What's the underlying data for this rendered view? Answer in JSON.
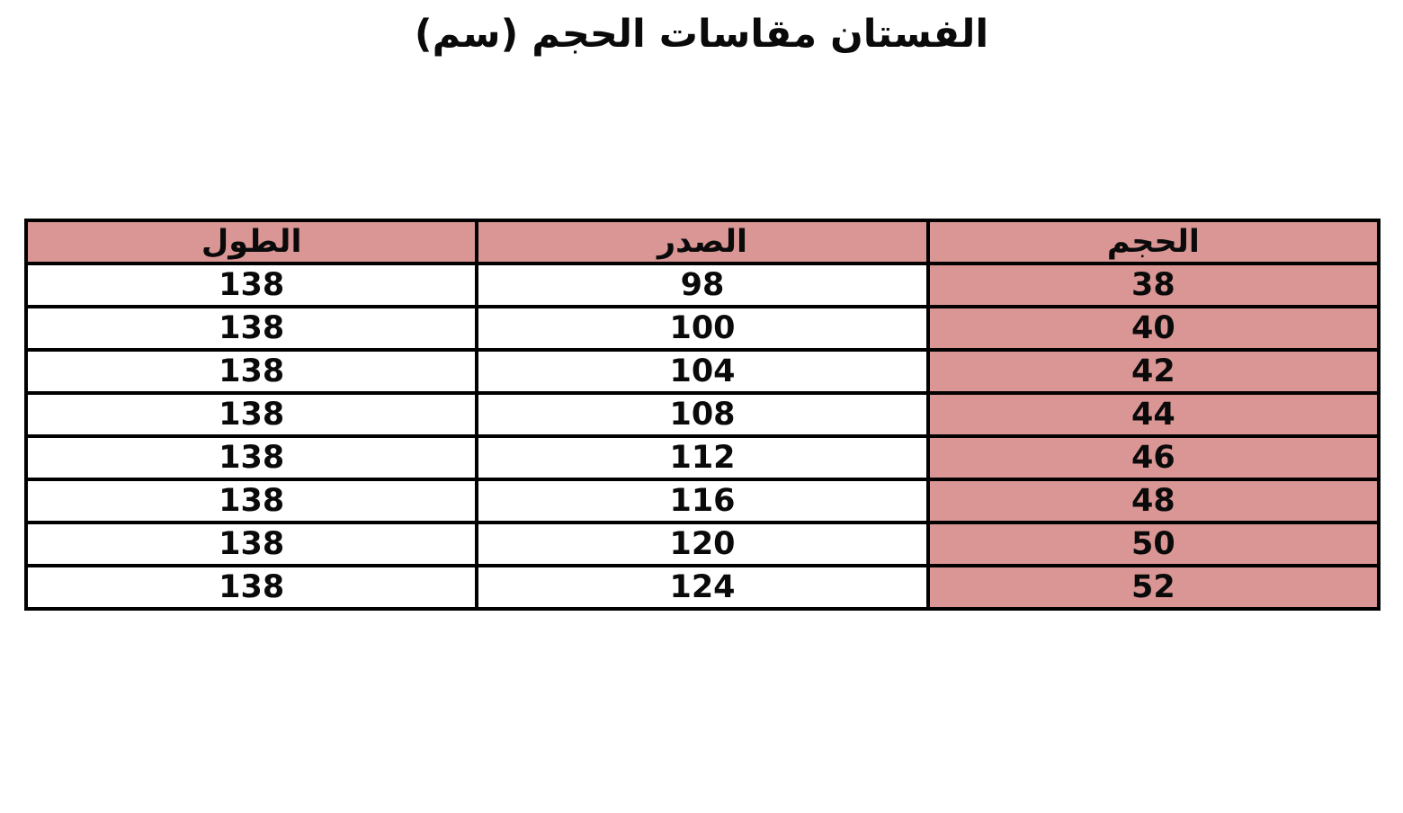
{
  "page": {
    "background": "#ffffff"
  },
  "title": "الفستان مقاسات الحجم (سم)",
  "table": {
    "direction": "rtl",
    "header": {
      "size": "الحجم",
      "chest": "الصدر",
      "length": "الطول"
    },
    "rows": [
      {
        "size": "38",
        "chest": "98",
        "length": "138"
      },
      {
        "size": "40",
        "chest": "100",
        "length": "138"
      },
      {
        "size": "42",
        "chest": "104",
        "length": "138"
      },
      {
        "size": "44",
        "chest": "108",
        "length": "138"
      },
      {
        "size": "46",
        "chest": "112",
        "length": "138"
      },
      {
        "size": "48",
        "chest": "116",
        "length": "138"
      },
      {
        "size": "50",
        "chest": "120",
        "length": "138"
      },
      {
        "size": "52",
        "chest": "124",
        "length": "138"
      }
    ],
    "colors": {
      "header_bg": "#d99694",
      "size_column_bg": "#d99694",
      "border": "#000000",
      "text": "#0a0a0a"
    }
  },
  "chart_data": {
    "type": "table",
    "title": "الفستان مقاسات الحجم (سم)",
    "columns": [
      "الحجم",
      "الصدر",
      "الطول"
    ],
    "rows": [
      [
        38,
        98,
        138
      ],
      [
        40,
        100,
        138
      ],
      [
        42,
        104,
        138
      ],
      [
        44,
        108,
        138
      ],
      [
        46,
        112,
        138
      ],
      [
        48,
        116,
        138
      ],
      [
        50,
        120,
        138
      ],
      [
        52,
        124,
        138
      ]
    ],
    "layout": {
      "direction": "rtl",
      "shaded_header": true,
      "shaded_column": "الحجم",
      "shade_color": "#d99694",
      "grid": "black solid borders"
    }
  }
}
